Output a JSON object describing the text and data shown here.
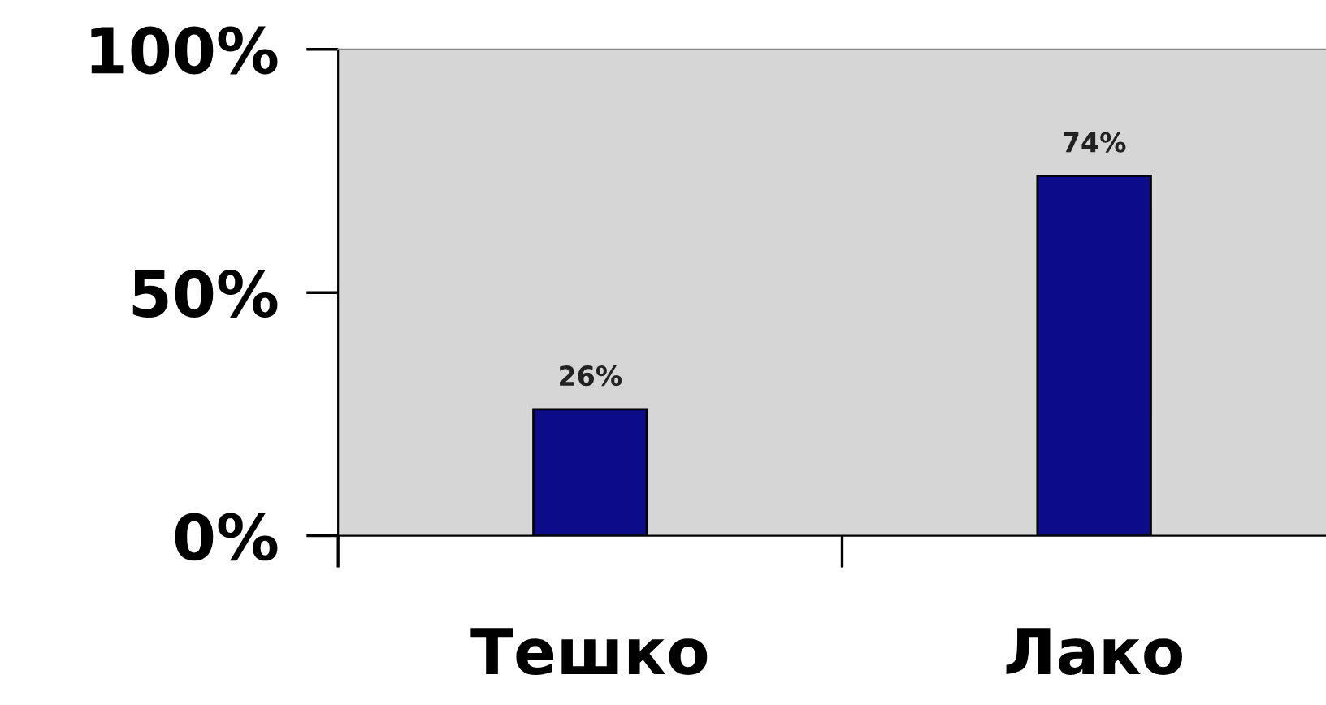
{
  "chart_data": {
    "type": "bar",
    "categories": [
      "Тешко",
      "Лако"
    ],
    "values": [
      26,
      74
    ],
    "value_labels": [
      "26%",
      "74%"
    ],
    "color": "#0c0c8a",
    "ylim": [
      0,
      100
    ],
    "yticks": [
      {
        "value": 0,
        "label": "0%"
      },
      {
        "value": 50,
        "label": "50%"
      },
      {
        "value": 100,
        "label": "100%"
      }
    ],
    "grid": false,
    "legend": false
  }
}
